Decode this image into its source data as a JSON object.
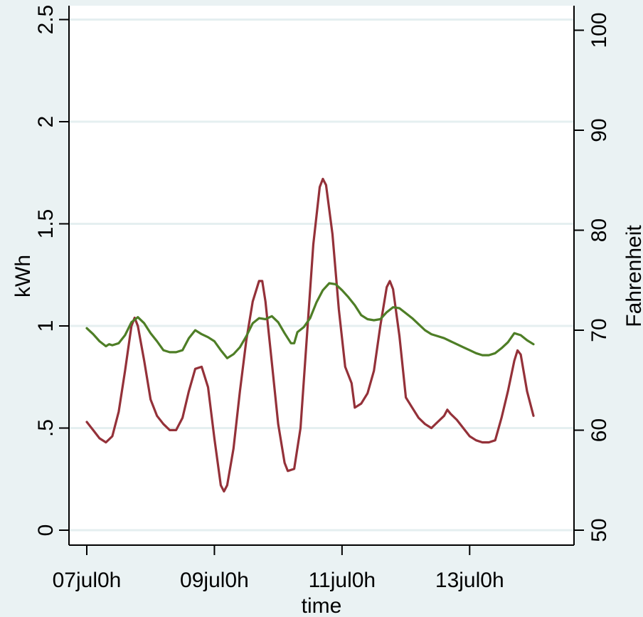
{
  "chart_data": {
    "type": "line",
    "title": "",
    "xlabel": "time",
    "ylabel_left": "kWh",
    "ylabel_right": "Fahrenheit",
    "x_ticks": [
      {
        "label": "07jul0h",
        "day": 7
      },
      {
        "label": "09jul0h",
        "day": 9
      },
      {
        "label": "11jul0h",
        "day": 11
      },
      {
        "label": "13jul0h",
        "day": 13
      }
    ],
    "xlim": [
      7,
      14
    ],
    "y_left_ticks": [
      {
        "label": "0",
        "value": 0
      },
      {
        "label": ".5",
        "value": 0.5
      },
      {
        "label": "1",
        "value": 1
      },
      {
        "label": "1.5",
        "value": 1.5
      },
      {
        "label": "2",
        "value": 2
      },
      {
        "label": "2.5",
        "value": 2.5
      }
    ],
    "y_right_ticks": [
      {
        "label": "50",
        "value": 50
      },
      {
        "label": "60",
        "value": 60
      },
      {
        "label": "70",
        "value": 70
      },
      {
        "label": "80",
        "value": 80
      },
      {
        "label": "90",
        "value": 90
      },
      {
        "label": "100",
        "value": 100
      }
    ],
    "grid": true,
    "colors": {
      "background": "#eaf2f3",
      "plot_background": "#ffffff",
      "gridline": "#e5eff0",
      "kwh_series": "#943139",
      "temperature_series": "#4e7e26"
    },
    "series": [
      {
        "axis": "left",
        "color": "#943139",
        "points": [
          [
            7.0,
            0.53
          ],
          [
            7.1,
            0.49
          ],
          [
            7.2,
            0.45
          ],
          [
            7.3,
            0.43
          ],
          [
            7.4,
            0.46
          ],
          [
            7.5,
            0.58
          ],
          [
            7.6,
            0.78
          ],
          [
            7.7,
            1.0
          ],
          [
            7.75,
            1.04
          ],
          [
            7.8,
            1.0
          ],
          [
            7.9,
            0.83
          ],
          [
            8.0,
            0.64
          ],
          [
            8.1,
            0.56
          ],
          [
            8.2,
            0.52
          ],
          [
            8.3,
            0.49
          ],
          [
            8.4,
            0.49
          ],
          [
            8.5,
            0.55
          ],
          [
            8.6,
            0.68
          ],
          [
            8.7,
            0.79
          ],
          [
            8.8,
            0.8
          ],
          [
            8.9,
            0.7
          ],
          [
            9.0,
            0.45
          ],
          [
            9.1,
            0.22
          ],
          [
            9.15,
            0.19
          ],
          [
            9.2,
            0.22
          ],
          [
            9.3,
            0.4
          ],
          [
            9.4,
            0.68
          ],
          [
            9.5,
            0.93
          ],
          [
            9.6,
            1.12
          ],
          [
            9.7,
            1.22
          ],
          [
            9.75,
            1.22
          ],
          [
            9.8,
            1.12
          ],
          [
            9.9,
            0.82
          ],
          [
            10.0,
            0.52
          ],
          [
            10.1,
            0.33
          ],
          [
            10.15,
            0.29
          ],
          [
            10.25,
            0.3
          ],
          [
            10.35,
            0.5
          ],
          [
            10.45,
            0.95
          ],
          [
            10.55,
            1.4
          ],
          [
            10.65,
            1.68
          ],
          [
            10.7,
            1.72
          ],
          [
            10.75,
            1.69
          ],
          [
            10.85,
            1.45
          ],
          [
            10.95,
            1.08
          ],
          [
            11.05,
            0.8
          ],
          [
            11.15,
            0.72
          ],
          [
            11.2,
            0.6
          ],
          [
            11.3,
            0.62
          ],
          [
            11.4,
            0.67
          ],
          [
            11.5,
            0.78
          ],
          [
            11.6,
            1.0
          ],
          [
            11.7,
            1.19
          ],
          [
            11.75,
            1.22
          ],
          [
            11.8,
            1.18
          ],
          [
            11.9,
            0.95
          ],
          [
            12.0,
            0.65
          ],
          [
            12.1,
            0.6
          ],
          [
            12.2,
            0.55
          ],
          [
            12.3,
            0.52
          ],
          [
            12.4,
            0.5
          ],
          [
            12.5,
            0.53
          ],
          [
            12.6,
            0.56
          ],
          [
            12.65,
            0.59
          ],
          [
            12.7,
            0.57
          ],
          [
            12.8,
            0.54
          ],
          [
            12.9,
            0.5
          ],
          [
            13.0,
            0.46
          ],
          [
            13.1,
            0.44
          ],
          [
            13.2,
            0.43
          ],
          [
            13.3,
            0.43
          ],
          [
            13.4,
            0.44
          ],
          [
            13.5,
            0.55
          ],
          [
            13.6,
            0.68
          ],
          [
            13.7,
            0.83
          ],
          [
            13.75,
            0.88
          ],
          [
            13.8,
            0.86
          ],
          [
            13.9,
            0.68
          ],
          [
            14.0,
            0.56
          ]
        ]
      },
      {
        "axis": "right",
        "color": "#4e7e26",
        "points": [
          [
            7.0,
            70.2
          ],
          [
            7.1,
            69.6
          ],
          [
            7.2,
            68.9
          ],
          [
            7.3,
            68.4
          ],
          [
            7.35,
            68.6
          ],
          [
            7.4,
            68.5
          ],
          [
            7.5,
            68.7
          ],
          [
            7.6,
            69.5
          ],
          [
            7.7,
            70.8
          ],
          [
            7.8,
            71.3
          ],
          [
            7.9,
            70.7
          ],
          [
            8.0,
            69.7
          ],
          [
            8.1,
            68.9
          ],
          [
            8.2,
            68.0
          ],
          [
            8.3,
            67.8
          ],
          [
            8.4,
            67.8
          ],
          [
            8.5,
            68.0
          ],
          [
            8.6,
            69.2
          ],
          [
            8.7,
            70.0
          ],
          [
            8.8,
            69.6
          ],
          [
            8.9,
            69.3
          ],
          [
            9.0,
            68.9
          ],
          [
            9.1,
            68.0
          ],
          [
            9.2,
            67.2
          ],
          [
            9.3,
            67.6
          ],
          [
            9.4,
            68.3
          ],
          [
            9.5,
            69.4
          ],
          [
            9.6,
            70.7
          ],
          [
            9.7,
            71.2
          ],
          [
            9.8,
            71.1
          ],
          [
            9.9,
            71.4
          ],
          [
            10.0,
            70.8
          ],
          [
            10.1,
            69.7
          ],
          [
            10.2,
            68.7
          ],
          [
            10.25,
            68.7
          ],
          [
            10.3,
            69.8
          ],
          [
            10.4,
            70.3
          ],
          [
            10.5,
            71.2
          ],
          [
            10.6,
            72.8
          ],
          [
            10.7,
            74.0
          ],
          [
            10.8,
            74.7
          ],
          [
            10.9,
            74.6
          ],
          [
            11.0,
            74.0
          ],
          [
            11.1,
            73.3
          ],
          [
            11.2,
            72.5
          ],
          [
            11.3,
            71.5
          ],
          [
            11.4,
            71.1
          ],
          [
            11.5,
            71.0
          ],
          [
            11.6,
            71.1
          ],
          [
            11.7,
            71.8
          ],
          [
            11.8,
            72.3
          ],
          [
            11.9,
            72.2
          ],
          [
            12.0,
            71.7
          ],
          [
            12.1,
            71.2
          ],
          [
            12.2,
            70.6
          ],
          [
            12.3,
            70.0
          ],
          [
            12.4,
            69.6
          ],
          [
            12.5,
            69.4
          ],
          [
            12.6,
            69.2
          ],
          [
            12.7,
            68.9
          ],
          [
            12.8,
            68.6
          ],
          [
            12.9,
            68.3
          ],
          [
            13.0,
            68.0
          ],
          [
            13.1,
            67.7
          ],
          [
            13.2,
            67.5
          ],
          [
            13.3,
            67.5
          ],
          [
            13.4,
            67.7
          ],
          [
            13.5,
            68.2
          ],
          [
            13.6,
            68.8
          ],
          [
            13.7,
            69.7
          ],
          [
            13.8,
            69.5
          ],
          [
            13.9,
            69.0
          ],
          [
            14.0,
            68.6
          ]
        ]
      }
    ]
  }
}
